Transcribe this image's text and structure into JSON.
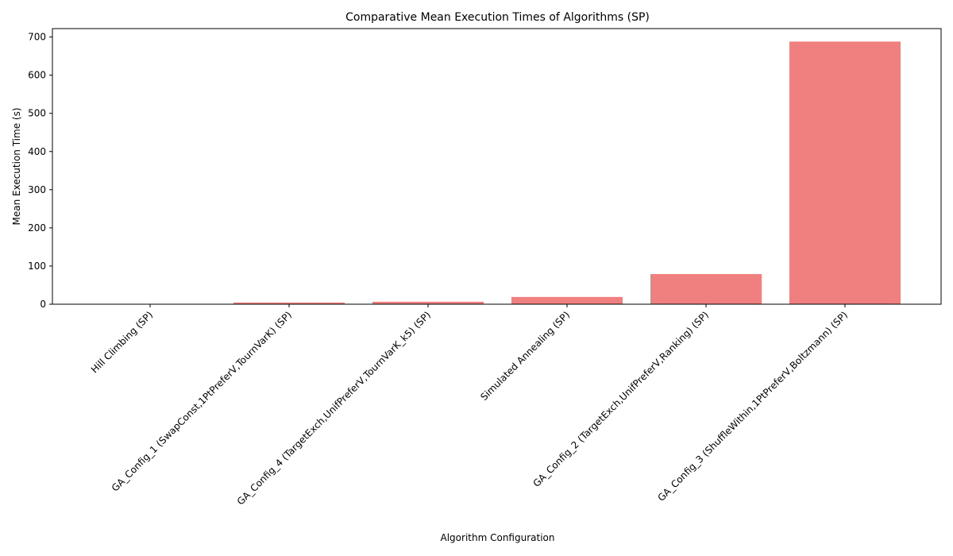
{
  "chart_data": {
    "type": "bar",
    "title": "Comparative Mean Execution Times of Algorithms (SP)",
    "xlabel": "Algorithm Configuration",
    "ylabel": "Mean Execution Time (s)",
    "categories": [
      "Hill Climbing (SP)",
      "GA_Config_1 (SwapConst,1PtPreferV,TournVarK) (SP)",
      "GA_Config_4 (TargetExch,UnifPreferV,TournVarK_k5) (SP)",
      "Simulated Annealing (SP)",
      "GA_Config_2 (TargetExch,UnifPreferV,Ranking) (SP)",
      "GA_Config_3 (ShuffleWithin,1PtPreferV,Boltzmann) (SP)"
    ],
    "values": [
      0.3,
      4.5,
      6.5,
      19,
      79,
      688
    ],
    "ylim": [
      0,
      722
    ],
    "yticks": [
      0,
      100,
      200,
      300,
      400,
      500,
      600,
      700
    ],
    "bar_color": "#f08080",
    "grid": false,
    "legend": "none"
  }
}
